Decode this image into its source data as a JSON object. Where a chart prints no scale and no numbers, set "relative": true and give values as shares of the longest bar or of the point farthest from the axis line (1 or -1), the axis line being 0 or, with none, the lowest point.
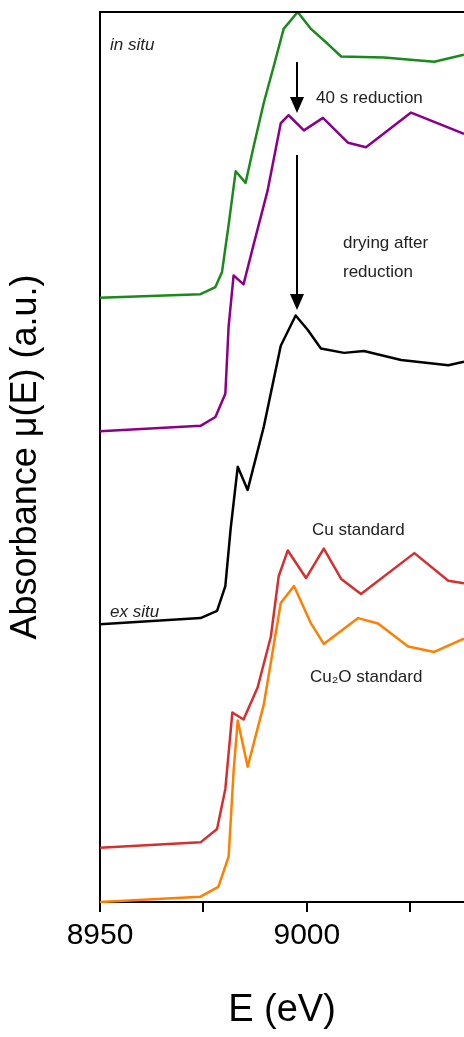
{
  "chart_data": {
    "type": "line",
    "relative": true,
    "xlabel": "E (eV)",
    "ylabel": "Absorbance μ(E) (a.u.)",
    "xlim": [
      8950,
      9038
    ],
    "xticks": [
      8950,
      {
        "value": 8975,
        "label": null
      },
      9000,
      {
        "value": 9025,
        "label": null
      }
    ],
    "grid": false,
    "legend": false,
    "marker": "none",
    "line_style": "solid",
    "series": [
      {
        "color": "#1a8a1a",
        "x": [
          8950,
          8974.3,
          8977.9,
          8979.5,
          8981.1,
          8982.8,
          8985.2,
          8987.1,
          8989.6,
          8992.0,
          8994.4,
          8997.8,
          9001.0,
          9005.1,
          9008.3,
          9018.7,
          9030.8,
          9038
        ],
        "values": [
          0.679,
          0.683,
          0.691,
          0.708,
          0.761,
          0.821,
          0.808,
          0.848,
          0.898,
          0.939,
          0.981,
          1.0,
          0.981,
          0.964,
          0.95,
          0.949,
          0.944,
          0.952
        ]
      },
      {
        "color": "#8b008b",
        "x": [
          8950,
          8974.3,
          8977.9,
          8980.3,
          8981.1,
          8982.3,
          8984.7,
          8987.1,
          8990.5,
          8993.7,
          8995.6,
          8999.3,
          9003.9,
          9010.0,
          9014.3,
          9025.2,
          9038
        ],
        "values": [
          0.529,
          0.535,
          0.545,
          0.571,
          0.647,
          0.704,
          0.694,
          0.738,
          0.799,
          0.875,
          0.884,
          0.867,
          0.881,
          0.853,
          0.848,
          0.887,
          0.863
        ]
      },
      {
        "name": "ex situ",
        "color": "#000000",
        "x": [
          8950,
          8974.3,
          8978.3,
          8980.3,
          8981.6,
          8983.3,
          8985.7,
          8989.6,
          8993.7,
          8997.3,
          9000.2,
          9003.4,
          9009.0,
          9013.8,
          9022.8,
          9034.2,
          9038
        ],
        "values": [
          0.312,
          0.319,
          0.327,
          0.355,
          0.42,
          0.489,
          0.463,
          0.534,
          0.625,
          0.659,
          0.643,
          0.622,
          0.617,
          0.619,
          0.609,
          0.603,
          0.607
        ]
      },
      {
        "name": "Cu standard",
        "color": "#d62f2f",
        "x": [
          8950,
          8974.3,
          8978.3,
          8980.3,
          8982.0,
          8984.7,
          8988.1,
          8991.3,
          8993.2,
          8995.4,
          8999.8,
          9004.1,
          9008.3,
          9013.1,
          9026.0,
          9034.2,
          9038
        ],
        "values": [
          0.061,
          0.067,
          0.082,
          0.127,
          0.213,
          0.205,
          0.241,
          0.298,
          0.366,
          0.395,
          0.364,
          0.397,
          0.363,
          0.346,
          0.392,
          0.361,
          0.358
        ]
      },
      {
        "name": "Cu₂O standard",
        "color": "#ff7f00",
        "x": [
          8950,
          8974.3,
          8978.6,
          8981.1,
          8982.3,
          8983.3,
          8985.7,
          8989.6,
          8993.7,
          8996.9,
          9001.0,
          9004.1,
          9012.4,
          9017.2,
          9024.5,
          9030.8,
          9038
        ],
        "values": [
          0.0,
          0.006,
          0.017,
          0.051,
          0.147,
          0.204,
          0.152,
          0.222,
          0.336,
          0.355,
          0.313,
          0.29,
          0.319,
          0.313,
          0.287,
          0.281,
          0.296
        ]
      }
    ],
    "annotations": [
      "in situ",
      "40 s reduction",
      "drying after reduction"
    ]
  }
}
